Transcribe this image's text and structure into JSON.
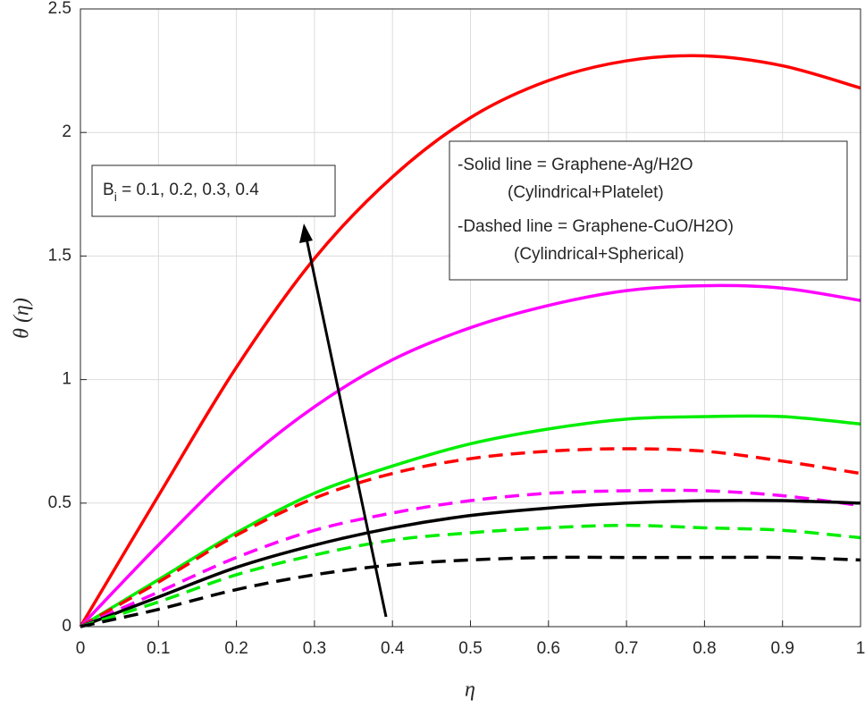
{
  "chart_data": {
    "type": "line",
    "xlabel": "η",
    "ylabel": "θ (η)",
    "x": [
      0,
      0.1,
      0.2,
      0.3,
      0.4,
      0.5,
      0.6,
      0.7,
      0.8,
      0.9,
      1
    ],
    "xlim": [
      0,
      1
    ],
    "xticks": [
      0,
      0.1,
      0.2,
      0.3,
      0.4,
      0.5,
      0.6,
      0.7,
      0.8,
      0.9,
      1
    ],
    "ylim": [
      0,
      2.5
    ],
    "yticks": [
      0,
      0.5,
      1,
      1.5,
      2,
      2.5
    ],
    "grid": true,
    "series": [
      {
        "color": "#ff0000",
        "dashed": false,
        "values": [
          0,
          0.53,
          1.05,
          1.49,
          1.82,
          2.06,
          2.21,
          2.29,
          2.31,
          2.27,
          2.18
        ]
      },
      {
        "color": "#ff00ff",
        "dashed": false,
        "values": [
          0,
          0.33,
          0.64,
          0.89,
          1.08,
          1.21,
          1.3,
          1.36,
          1.38,
          1.37,
          1.32
        ]
      },
      {
        "color": "#00ee00",
        "dashed": false,
        "values": [
          0,
          0.19,
          0.38,
          0.54,
          0.65,
          0.74,
          0.8,
          0.84,
          0.85,
          0.85,
          0.82
        ]
      },
      {
        "color": "#ff0000",
        "dashed": true,
        "values": [
          0,
          0.18,
          0.37,
          0.52,
          0.62,
          0.68,
          0.71,
          0.72,
          0.71,
          0.67,
          0.62
        ]
      },
      {
        "color": "#ff00ff",
        "dashed": true,
        "values": [
          0,
          0.14,
          0.28,
          0.39,
          0.46,
          0.51,
          0.54,
          0.55,
          0.55,
          0.53,
          0.49
        ]
      },
      {
        "color": "#000000",
        "dashed": false,
        "values": [
          0,
          0.12,
          0.24,
          0.33,
          0.4,
          0.45,
          0.48,
          0.5,
          0.51,
          0.51,
          0.5
        ]
      },
      {
        "color": "#00ee00",
        "dashed": true,
        "values": [
          0,
          0.1,
          0.21,
          0.29,
          0.35,
          0.38,
          0.4,
          0.41,
          0.4,
          0.39,
          0.36
        ]
      },
      {
        "color": "#000000",
        "dashed": true,
        "values": [
          0,
          0.07,
          0.15,
          0.21,
          0.25,
          0.27,
          0.28,
          0.28,
          0.28,
          0.28,
          0.27
        ]
      }
    ],
    "annotations": {
      "parameter": {
        "base": "B",
        "subscript": "i",
        "rest": " = 0.1, 0.2, 0.3, 0.4"
      },
      "note": [
        "-Solid line = Graphene-Ag/H2O",
        "(Cylindrical+Platelet)",
        "-Dashed line = Graphene-CuO/H2O)",
        "(Cylindrical+Spherical)"
      ]
    }
  }
}
